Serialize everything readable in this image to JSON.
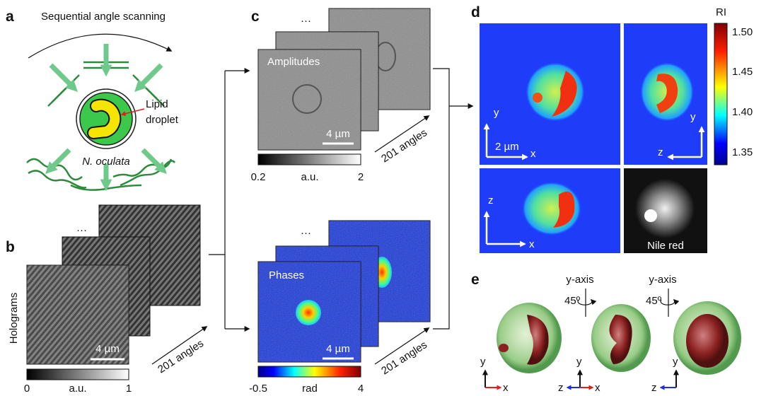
{
  "panel_a": {
    "label": "a",
    "title": "Sequential angle scanning",
    "annotation_lines": [
      "Lipid",
      "droplet"
    ],
    "organism": "N. oculata"
  },
  "panel_b": {
    "label": "b",
    "ellipsis": "···",
    "ylabel": "Holograms",
    "scale_bar": "4 µm",
    "colorbar": {
      "min": "0",
      "unit": "a.u.",
      "max": "1"
    },
    "stack_label": "201 angles"
  },
  "panel_c": {
    "label": "c",
    "amplitudes": {
      "title": "Amplitudes",
      "ellipsis": "···",
      "scale_bar": "4 µm",
      "colorbar": {
        "min": "0.2",
        "unit": "a.u.",
        "max": "2"
      },
      "stack_label": "201 angles"
    },
    "phases": {
      "title": "Phases",
      "ellipsis": "···",
      "scale_bar": "4 µm",
      "colorbar": {
        "min": "-0.5",
        "unit": "rad",
        "max": "4"
      },
      "stack_label": "201 angles"
    }
  },
  "panel_d": {
    "label": "d",
    "colorbar": {
      "title": "RI",
      "ticks": [
        "1.50",
        "1.45",
        "1.40",
        "1.35"
      ]
    },
    "xy": {
      "vertical": "y",
      "horizontal": "x",
      "scale_bar": "2 µm"
    },
    "zy": {
      "vertical": "y",
      "horizontal": "z"
    },
    "xz": {
      "vertical": "z",
      "horizontal": "x"
    },
    "fluorescence": "Nile red"
  },
  "panel_e": {
    "label": "e",
    "rotations": [
      {
        "axis": "y-axis",
        "angle": "45º"
      },
      {
        "axis": "y-axis",
        "angle": "45º"
      }
    ],
    "views": [
      {
        "up": "y",
        "right": "x"
      },
      {
        "up": "y",
        "left": "z",
        "right": "x"
      },
      {
        "up": "y",
        "left": "z"
      }
    ]
  }
}
